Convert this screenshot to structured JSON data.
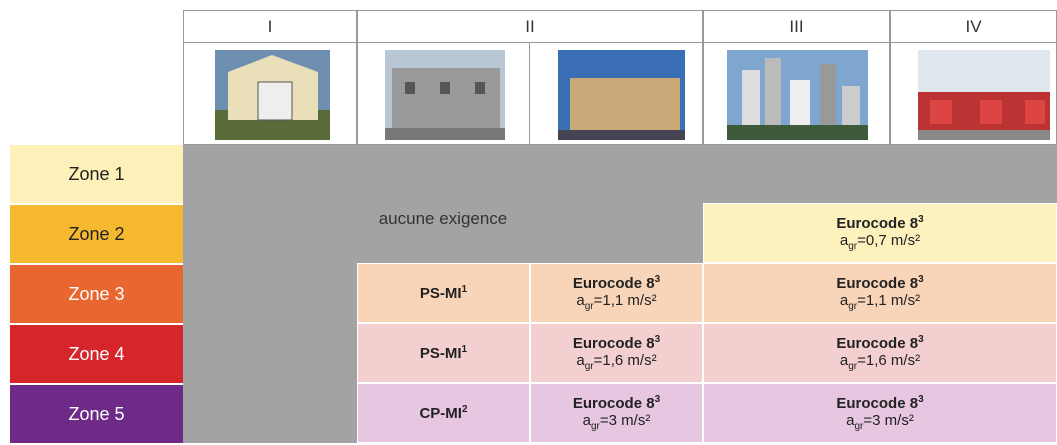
{
  "header": {
    "columns": [
      "I",
      "II",
      "III",
      "IV"
    ]
  },
  "zones": [
    "Zone 1",
    "Zone 2",
    "Zone 3",
    "Zone 4",
    "Zone 5"
  ],
  "gray_label": "aucune exigence",
  "cells": [
    {
      "title": "Eurocode 8",
      "note": "3",
      "symbol": "a",
      "subscript": "gr",
      "value": "=0,7 m/s²"
    },
    {
      "title": "PS-MI",
      "note": "1"
    },
    {
      "title": "Eurocode 8",
      "note": "3",
      "symbol": "a",
      "subscript": "gr",
      "value": "=1,1 m/s²"
    },
    {
      "title": "Eurocode 8",
      "note": "3",
      "symbol": "a",
      "subscript": "gr",
      "value": "=1,1 m/s²"
    },
    {
      "title": "PS-MI",
      "note": "1"
    },
    {
      "title": "Eurocode 8",
      "note": "3",
      "symbol": "a",
      "subscript": "gr",
      "value": "=1,6 m/s²"
    },
    {
      "title": "Eurocode 8",
      "note": "3",
      "symbol": "a",
      "subscript": "gr",
      "value": "=1,6 m/s²"
    },
    {
      "title": "CP-MI",
      "note": "2"
    },
    {
      "title": "Eurocode 8",
      "note": "3",
      "symbol": "a",
      "subscript": "gr",
      "value": "=3 m/s²"
    },
    {
      "title": "Eurocode 8",
      "note": "3",
      "symbol": "a",
      "subscript": "gr",
      "value": "=3 m/s²"
    }
  ]
}
